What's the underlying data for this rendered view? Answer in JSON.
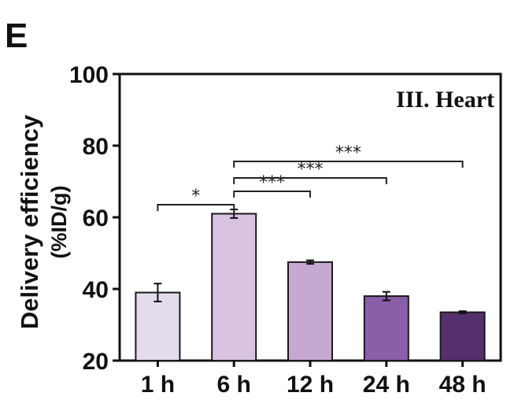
{
  "panel_label": "E",
  "chart_data": {
    "type": "bar",
    "title": "III. Heart",
    "ylabel": "Delivery efficiency",
    "ylabel_unit": "(%ID/g)",
    "xlabel": "",
    "categories": [
      "1 h",
      "6 h",
      "12 h",
      "24 h",
      "48 h"
    ],
    "values": [
      39,
      61,
      47.5,
      38,
      33.5
    ],
    "errors": [
      2.5,
      1.2,
      0.5,
      1.2,
      0.3
    ],
    "ylim": [
      20,
      100
    ],
    "yticks": [
      "20",
      "40",
      "60",
      "80",
      "100"
    ],
    "colors": [
      "#e4dcec",
      "#d8c4e2",
      "#c5a9d3",
      "#8a5ea8",
      "#55306e"
    ],
    "grid": false,
    "significance": [
      {
        "from": "1 h",
        "to": "6 h",
        "label": "*"
      },
      {
        "from": "6 h",
        "to": "12 h",
        "label": "***"
      },
      {
        "from": "6 h",
        "to": "24 h",
        "label": "***"
      },
      {
        "from": "6 h",
        "to": "48 h",
        "label": "***"
      }
    ]
  }
}
